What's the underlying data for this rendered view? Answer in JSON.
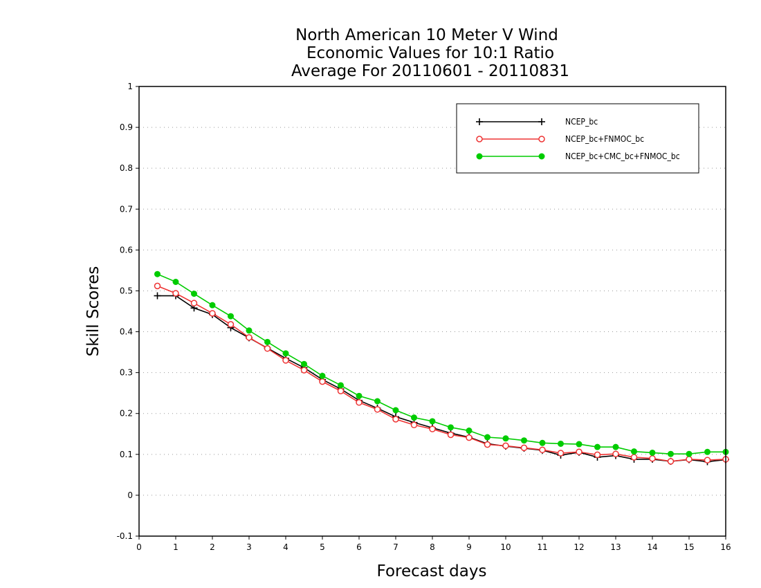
{
  "chart_data": {
    "type": "line",
    "title": [
      "North American 10 Meter V Wind",
      "Economic Values for 10:1 Ratio",
      "Average For 20110601 - 20110831"
    ],
    "xlabel": "Forecast days",
    "ylabel": "Skill Scores",
    "xlim": [
      0,
      16
    ],
    "ylim": [
      -0.1,
      1
    ],
    "xticks": [
      0,
      1,
      2,
      3,
      4,
      5,
      6,
      7,
      8,
      9,
      10,
      11,
      12,
      13,
      14,
      15,
      16
    ],
    "yticks": [
      -0.1,
      0,
      0.1,
      0.2,
      0.3,
      0.4,
      0.5,
      0.6,
      0.7,
      0.8,
      0.9,
      1
    ],
    "ytick_labels": [
      "-0.1",
      "0",
      "0.1",
      "0.2",
      "0.3",
      "0.4",
      "0.5",
      "0.6",
      "0.7",
      "0.8",
      "0.9",
      "1"
    ],
    "grid": "horizontal dotted",
    "legend_position": "top-right",
    "x": [
      0.5,
      1,
      1.5,
      2,
      2.5,
      3,
      3.5,
      4,
      4.5,
      5,
      5.5,
      6,
      6.5,
      7,
      7.5,
      8,
      8.5,
      9,
      9.5,
      10,
      10.5,
      11,
      11.5,
      12,
      12.5,
      13,
      13.5,
      14,
      14.5,
      15,
      15.5,
      16
    ],
    "series": [
      {
        "name": "NCEP_bc",
        "color": "#000000",
        "marker": "plus",
        "values": [
          0.488,
          0.488,
          0.458,
          0.442,
          0.41,
          0.385,
          0.36,
          0.335,
          0.312,
          0.283,
          0.26,
          0.232,
          0.213,
          0.192,
          0.178,
          0.165,
          0.152,
          0.142,
          0.126,
          0.12,
          0.115,
          0.11,
          0.098,
          0.105,
          0.093,
          0.097,
          0.088,
          0.088,
          0.083,
          0.087,
          0.082,
          0.087
        ]
      },
      {
        "name": "NCEP_bc+FNMOC_bc",
        "color": "#ee3333",
        "marker": "open-circle",
        "values": [
          0.512,
          0.494,
          0.47,
          0.445,
          0.418,
          0.386,
          0.359,
          0.33,
          0.306,
          0.278,
          0.255,
          0.227,
          0.21,
          0.186,
          0.172,
          0.162,
          0.148,
          0.141,
          0.124,
          0.121,
          0.116,
          0.111,
          0.103,
          0.106,
          0.099,
          0.101,
          0.093,
          0.09,
          0.083,
          0.088,
          0.086,
          0.088
        ]
      },
      {
        "name": "NCEP_bc+CMC_bc+FNMOC_bc",
        "color": "#00cc00",
        "marker": "filled-circle",
        "values": [
          0.541,
          0.522,
          0.493,
          0.465,
          0.438,
          0.403,
          0.375,
          0.347,
          0.321,
          0.292,
          0.269,
          0.243,
          0.23,
          0.208,
          0.19,
          0.181,
          0.166,
          0.158,
          0.142,
          0.139,
          0.134,
          0.128,
          0.126,
          0.125,
          0.118,
          0.118,
          0.107,
          0.104,
          0.101,
          0.101,
          0.106,
          0.106
        ]
      }
    ]
  }
}
